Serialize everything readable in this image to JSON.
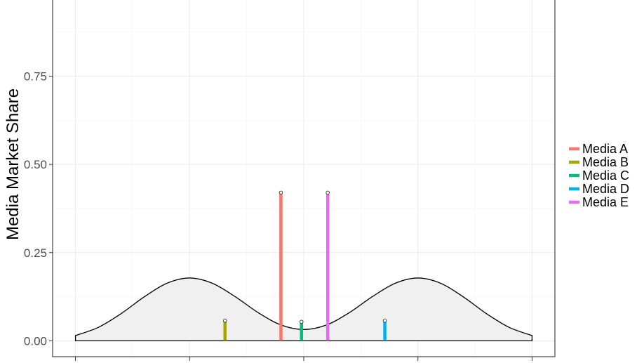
{
  "chart_data": {
    "type": "line",
    "ylabel": "Media Market Share",
    "xlabel": "",
    "ylim": [
      -0.045,
      0.97
    ],
    "xlim": [
      -2.2,
      2.2
    ],
    "y_ticks": [
      0.0,
      0.25,
      0.5,
      0.75
    ],
    "y_tick_labels": [
      "0.00",
      "0.25",
      "0.50",
      "0.75"
    ],
    "x_ticks": [
      -2,
      -1,
      0,
      1,
      2
    ],
    "x_tick_labels_visible": false,
    "grid": true,
    "legend_position": "right",
    "density": {
      "description": "bimodal population density (filled gray)",
      "fill": "#f0f0f0",
      "stroke": "#000000",
      "x": [
        -2.0,
        -1.8,
        -1.6,
        -1.4,
        -1.2,
        -1.0,
        -0.8,
        -0.6,
        -0.4,
        -0.2,
        0.0,
        0.2,
        0.4,
        0.6,
        0.8,
        1.0,
        1.2,
        1.4,
        1.6,
        1.8,
        2.0
      ],
      "y": [
        0.015,
        0.038,
        0.077,
        0.124,
        0.163,
        0.178,
        0.163,
        0.125,
        0.08,
        0.045,
        0.032,
        0.045,
        0.08,
        0.125,
        0.163,
        0.178,
        0.163,
        0.124,
        0.077,
        0.038,
        0.015
      ]
    },
    "series": [
      {
        "name": "Media A",
        "x": -0.2,
        "share": 0.42,
        "color": "#F8766D"
      },
      {
        "name": "Media B",
        "x": -0.69,
        "share": 0.057,
        "color": "#A3A500"
      },
      {
        "name": "Media C",
        "x": -0.02,
        "share": 0.054,
        "color": "#00BF7D"
      },
      {
        "name": "Media D",
        "x": 0.71,
        "share": 0.057,
        "color": "#00B0F6"
      },
      {
        "name": "Media E",
        "x": 0.21,
        "share": 0.42,
        "color": "#E76BF3"
      }
    ]
  }
}
